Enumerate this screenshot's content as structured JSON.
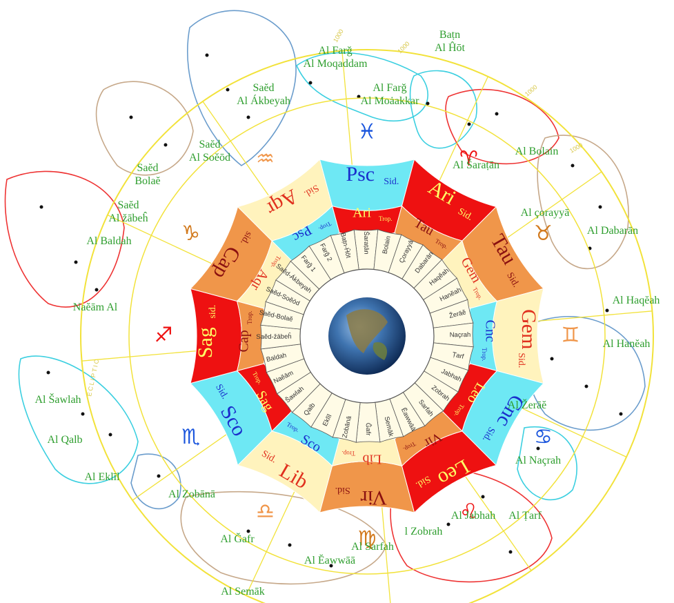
{
  "colors": {
    "red": "#ee1111",
    "orange": "#f0964a",
    "cream": "#fff3bd",
    "cyan": "#6ee8f4",
    "label_green": "#2e9e2e",
    "ecliptic": "#f2e23a",
    "mansion_fill": "#fffbe6"
  },
  "sidereal_ring": [
    {
      "abbr": "Psc",
      "sub": "Sid.",
      "color": "cyan"
    },
    {
      "abbr": "Ari",
      "sub": "Sid.",
      "color": "red"
    },
    {
      "abbr": "Tau",
      "sub": "Sid.",
      "color": "orange"
    },
    {
      "abbr": "Gem",
      "sub": "Sid.",
      "color": "cream"
    },
    {
      "abbr": "Cnc",
      "sub": "Sid.",
      "color": "cyan"
    },
    {
      "abbr": "Leo",
      "sub": "Sid.",
      "color": "red"
    },
    {
      "abbr": "Vir",
      "sub": "Sid.",
      "color": "orange"
    },
    {
      "abbr": "Lib",
      "sub": "Sid.",
      "color": "cream"
    },
    {
      "abbr": "Sco",
      "sub": "Sid.",
      "color": "cyan"
    },
    {
      "abbr": "Sag",
      "sub": "sid.",
      "color": "red"
    },
    {
      "abbr": "Cap",
      "sub": "sid.",
      "color": "orange"
    },
    {
      "abbr": "Aqr",
      "sub": "Sid.",
      "color": "cream"
    }
  ],
  "tropical_ring": [
    {
      "abbr": "Ari",
      "sub": "Trop.",
      "color": "red"
    },
    {
      "abbr": "Tau",
      "sub": "Trop.",
      "color": "orange"
    },
    {
      "abbr": "Gem",
      "sub": "Trop.",
      "color": "cream"
    },
    {
      "abbr": "Cnc",
      "sub": "Trop.",
      "color": "cyan"
    },
    {
      "abbr": "Leo",
      "sub": "Trop.",
      "color": "red"
    },
    {
      "abbr": "Vir",
      "sub": "Trop.",
      "color": "orange"
    },
    {
      "abbr": "Lib",
      "sub": "Trop.",
      "color": "cream"
    },
    {
      "abbr": "Sco",
      "sub": "Trop.",
      "color": "cyan"
    },
    {
      "abbr": "Sag",
      "sub": "Trop.",
      "color": "red"
    },
    {
      "abbr": "Cap",
      "sub": "Trop.",
      "color": "orange"
    },
    {
      "abbr": "Aqr",
      "sub": "Trop.",
      "color": "cream"
    },
    {
      "abbr": "Psc",
      "sub": "Trop.",
      "color": "cyan"
    }
  ],
  "mansions": [
    "Šaraṭān",
    "Bolain",
    "Çorayyā",
    "Dabarān",
    "Haqĕah",
    "Hanĕah",
    "Žerāĕ",
    "Naçrah",
    "Ṭarf",
    "Jabhah",
    "Zobrah",
    "Sarfah",
    "Ĕawwāā",
    "Semāk",
    "Ĝafr",
    "Zobānā",
    "Eklīl",
    "Qalb",
    "Šawlah",
    "Naĕām",
    "Baldah",
    "Saĕd-žābeĥ",
    "Saĕd-Bolaĕ",
    "Saĕd-Soĕōd",
    "Saĕd-Ákbeyah",
    "Farğ 1",
    "Farğ 2",
    "Baṭn-Ĥōt"
  ],
  "zodiac_glyphs": [
    {
      "glyph": "♓",
      "color": "#1a55dd",
      "name": "pisces-glyph"
    },
    {
      "glyph": "♈",
      "color": "#ee1111",
      "name": "aries-glyph"
    },
    {
      "glyph": "♉",
      "color": "#d27a1e",
      "name": "taurus-glyph"
    },
    {
      "glyph": "♊",
      "color": "#f0964a",
      "name": "gemini-glyph"
    },
    {
      "glyph": "♋",
      "color": "#1a55dd",
      "name": "cancer-glyph"
    },
    {
      "glyph": "♌",
      "color": "#ee1111",
      "name": "leo-glyph"
    },
    {
      "glyph": "♍",
      "color": "#d27a1e",
      "name": "virgo-glyph"
    },
    {
      "glyph": "♎",
      "color": "#f0964a",
      "name": "libra-glyph"
    },
    {
      "glyph": "♏",
      "color": "#1a55dd",
      "name": "scorpio-glyph"
    },
    {
      "glyph": "♐",
      "color": "#ee1111",
      "name": "sagittarius-glyph"
    },
    {
      "glyph": "♑",
      "color": "#d27a1e",
      "name": "capricorn-glyph"
    },
    {
      "glyph": "♒",
      "color": "#f0964a",
      "name": "aquarius-glyph"
    }
  ],
  "outer_labels": [
    {
      "lines": [
        "Baṭn",
        "Al Ĥōt"
      ]
    },
    {
      "lines": [
        "Al Farğ",
        "Al Moqaddam"
      ]
    },
    {
      "lines": [
        "Al Farğ",
        "Al Moȧakkar"
      ]
    },
    {
      "lines": [
        "Saĕd",
        "Al Ákbeyah"
      ]
    },
    {
      "lines": [
        "Saĕd",
        "Al Soĕōd"
      ]
    },
    {
      "lines": [
        "Saĕd",
        "Bolaĕ"
      ]
    },
    {
      "lines": [
        "Saĕd",
        "Al žābeĥ"
      ]
    },
    {
      "lines": [
        "Al Baldah"
      ]
    },
    {
      "lines": [
        "Naĕām Al"
      ]
    },
    {
      "lines": [
        "Al Šawlah"
      ]
    },
    {
      "lines": [
        "Al Qalb"
      ]
    },
    {
      "lines": [
        "Al Eklīl"
      ]
    },
    {
      "lines": [
        "Al Zobānā"
      ]
    },
    {
      "lines": [
        "Al Ğafr"
      ]
    },
    {
      "lines": [
        "Al Semāk"
      ]
    },
    {
      "lines": [
        "Al Ĕawwāā"
      ]
    },
    {
      "lines": [
        "Al Sarfah"
      ]
    },
    {
      "lines": [
        "l Zobrah"
      ]
    },
    {
      "lines": [
        "Al Jabhah"
      ]
    },
    {
      "lines": [
        "Al Ṭarf"
      ]
    },
    {
      "lines": [
        "Al Naçrah"
      ]
    },
    {
      "lines": [
        "Al Žerāĕ"
      ]
    },
    {
      "lines": [
        "Al Hanĕah"
      ]
    },
    {
      "lines": [
        "Al Haqĕah"
      ]
    },
    {
      "lines": [
        "Al Dabarān"
      ]
    },
    {
      "lines": [
        "Al çorayyā"
      ]
    },
    {
      "lines": [
        "Al Bolain"
      ]
    },
    {
      "lines": [
        "Al Šaraṭān"
      ]
    }
  ],
  "ecliptic_text": "ECLIPTIC",
  "tick_labels": [
    "1000",
    "1000",
    "1000",
    "1000"
  ]
}
